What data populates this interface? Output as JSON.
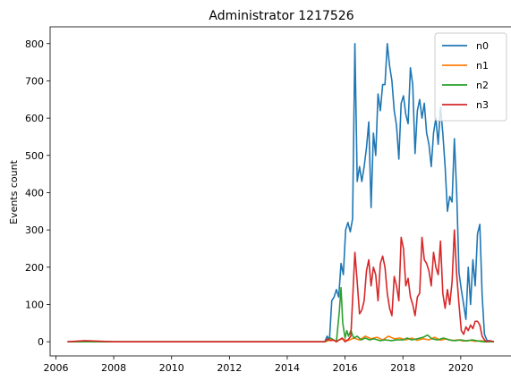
{
  "chart_data": {
    "type": "line",
    "title": "Administrator 1217526",
    "xlabel": "",
    "ylabel": "Events count",
    "xlim": [
      2005.8,
      2021.8
    ],
    "ylim": [
      -38,
      845
    ],
    "xticks": [
      2006,
      2008,
      2010,
      2012,
      2014,
      2016,
      2018,
      2020
    ],
    "yticks": [
      0,
      100,
      200,
      300,
      400,
      500,
      600,
      700,
      800
    ],
    "grid": false,
    "legend_position": "top-right",
    "series": [
      {
        "name": "n0",
        "color": "#1f77b4",
        "points": [
          [
            2006.4,
            0
          ],
          [
            2007.0,
            0
          ],
          [
            2008.0,
            0
          ],
          [
            2009.0,
            0
          ],
          [
            2010.0,
            0
          ],
          [
            2011.0,
            0
          ],
          [
            2012.0,
            0
          ],
          [
            2013.0,
            0
          ],
          [
            2014.0,
            0
          ],
          [
            2015.0,
            0
          ],
          [
            2015.3,
            0
          ],
          [
            2015.38,
            15
          ],
          [
            2015.46,
            5
          ],
          [
            2015.54,
            110
          ],
          [
            2015.62,
            120
          ],
          [
            2015.7,
            140
          ],
          [
            2015.78,
            120
          ],
          [
            2015.86,
            210
          ],
          [
            2015.94,
            180
          ],
          [
            2016.02,
            300
          ],
          [
            2016.1,
            320
          ],
          [
            2016.18,
            295
          ],
          [
            2016.26,
            330
          ],
          [
            2016.34,
            800
          ],
          [
            2016.42,
            430
          ],
          [
            2016.5,
            470
          ],
          [
            2016.58,
            430
          ],
          [
            2016.66,
            470
          ],
          [
            2016.74,
            520
          ],
          [
            2016.82,
            590
          ],
          [
            2016.9,
            360
          ],
          [
            2016.98,
            560
          ],
          [
            2017.06,
            500
          ],
          [
            2017.14,
            665
          ],
          [
            2017.22,
            620
          ],
          [
            2017.3,
            690
          ],
          [
            2017.38,
            690
          ],
          [
            2017.46,
            800
          ],
          [
            2017.54,
            740
          ],
          [
            2017.62,
            700
          ],
          [
            2017.7,
            620
          ],
          [
            2017.78,
            580
          ],
          [
            2017.86,
            490
          ],
          [
            2017.94,
            640
          ],
          [
            2018.02,
            660
          ],
          [
            2018.1,
            610
          ],
          [
            2018.18,
            585
          ],
          [
            2018.26,
            735
          ],
          [
            2018.34,
            690
          ],
          [
            2018.42,
            505
          ],
          [
            2018.5,
            620
          ],
          [
            2018.58,
            650
          ],
          [
            2018.66,
            600
          ],
          [
            2018.74,
            640
          ],
          [
            2018.82,
            560
          ],
          [
            2018.9,
            530
          ],
          [
            2018.98,
            470
          ],
          [
            2019.06,
            560
          ],
          [
            2019.14,
            600
          ],
          [
            2019.22,
            530
          ],
          [
            2019.3,
            630
          ],
          [
            2019.38,
            560
          ],
          [
            2019.46,
            470
          ],
          [
            2019.54,
            350
          ],
          [
            2019.62,
            390
          ],
          [
            2019.7,
            375
          ],
          [
            2019.78,
            545
          ],
          [
            2019.86,
            400
          ],
          [
            2019.94,
            185
          ],
          [
            2020.02,
            140
          ],
          [
            2020.1,
            100
          ],
          [
            2020.18,
            60
          ],
          [
            2020.26,
            200
          ],
          [
            2020.34,
            100
          ],
          [
            2020.42,
            220
          ],
          [
            2020.5,
            150
          ],
          [
            2020.58,
            290
          ],
          [
            2020.66,
            315
          ],
          [
            2020.74,
            125
          ],
          [
            2020.82,
            20
          ],
          [
            2020.9,
            5
          ],
          [
            2021.0,
            0
          ],
          [
            2021.15,
            0
          ]
        ]
      },
      {
        "name": "n1",
        "color": "#ff7f0e",
        "points": [
          [
            2006.4,
            0
          ],
          [
            2007.0,
            2
          ],
          [
            2008.0,
            0
          ],
          [
            2010.0,
            0
          ],
          [
            2012.0,
            0
          ],
          [
            2014.0,
            0
          ],
          [
            2015.3,
            0
          ],
          [
            2015.5,
            5
          ],
          [
            2015.7,
            2
          ],
          [
            2015.9,
            8
          ],
          [
            2016.1,
            3
          ],
          [
            2016.3,
            10
          ],
          [
            2016.5,
            5
          ],
          [
            2016.7,
            15
          ],
          [
            2016.9,
            8
          ],
          [
            2017.1,
            12
          ],
          [
            2017.3,
            5
          ],
          [
            2017.5,
            15
          ],
          [
            2017.7,
            8
          ],
          [
            2017.9,
            10
          ],
          [
            2018.1,
            5
          ],
          [
            2018.3,
            10
          ],
          [
            2018.5,
            4
          ],
          [
            2018.7,
            8
          ],
          [
            2018.9,
            5
          ],
          [
            2019.1,
            12
          ],
          [
            2019.3,
            4
          ],
          [
            2019.5,
            8
          ],
          [
            2019.7,
            3
          ],
          [
            2019.9,
            5
          ],
          [
            2020.1,
            2
          ],
          [
            2020.3,
            4
          ],
          [
            2020.5,
            1
          ],
          [
            2020.7,
            3
          ],
          [
            2020.9,
            0
          ],
          [
            2021.15,
            0
          ]
        ]
      },
      {
        "name": "n2",
        "color": "#2ca02c",
        "points": [
          [
            2006.4,
            0
          ],
          [
            2007.0,
            0
          ],
          [
            2008.0,
            0
          ],
          [
            2010.0,
            0
          ],
          [
            2012.0,
            0
          ],
          [
            2014.0,
            0
          ],
          [
            2015.3,
            0
          ],
          [
            2015.5,
            10
          ],
          [
            2015.7,
            0
          ],
          [
            2015.8,
            80
          ],
          [
            2015.86,
            145
          ],
          [
            2015.92,
            50
          ],
          [
            2016.0,
            10
          ],
          [
            2016.06,
            30
          ],
          [
            2016.12,
            15
          ],
          [
            2016.2,
            30
          ],
          [
            2016.3,
            10
          ],
          [
            2016.42,
            15
          ],
          [
            2016.55,
            5
          ],
          [
            2016.7,
            10
          ],
          [
            2016.85,
            5
          ],
          [
            2017.0,
            8
          ],
          [
            2017.2,
            3
          ],
          [
            2017.4,
            5
          ],
          [
            2017.6,
            3
          ],
          [
            2017.8,
            5
          ],
          [
            2018.0,
            5
          ],
          [
            2018.15,
            10
          ],
          [
            2018.3,
            5
          ],
          [
            2018.5,
            8
          ],
          [
            2018.7,
            12
          ],
          [
            2018.85,
            18
          ],
          [
            2019.0,
            8
          ],
          [
            2019.2,
            5
          ],
          [
            2019.4,
            10
          ],
          [
            2019.6,
            5
          ],
          [
            2019.8,
            3
          ],
          [
            2020.0,
            5
          ],
          [
            2020.2,
            2
          ],
          [
            2020.4,
            5
          ],
          [
            2020.6,
            2
          ],
          [
            2020.8,
            0
          ],
          [
            2021.15,
            0
          ]
        ]
      },
      {
        "name": "n3",
        "color": "#d62728",
        "points": [
          [
            2006.4,
            0
          ],
          [
            2007.0,
            3
          ],
          [
            2008.0,
            0
          ],
          [
            2009.0,
            0
          ],
          [
            2010.0,
            0
          ],
          [
            2011.0,
            0
          ],
          [
            2012.0,
            0
          ],
          [
            2013.0,
            0
          ],
          [
            2014.0,
            0
          ],
          [
            2015.0,
            0
          ],
          [
            2015.3,
            0
          ],
          [
            2015.4,
            8
          ],
          [
            2015.5,
            3
          ],
          [
            2015.6,
            5
          ],
          [
            2015.7,
            0
          ],
          [
            2015.8,
            5
          ],
          [
            2015.9,
            10
          ],
          [
            2016.0,
            0
          ],
          [
            2016.1,
            5
          ],
          [
            2016.2,
            15
          ],
          [
            2016.34,
            240
          ],
          [
            2016.42,
            160
          ],
          [
            2016.5,
            75
          ],
          [
            2016.58,
            85
          ],
          [
            2016.66,
            110
          ],
          [
            2016.74,
            190
          ],
          [
            2016.82,
            220
          ],
          [
            2016.9,
            150
          ],
          [
            2016.98,
            200
          ],
          [
            2017.06,
            180
          ],
          [
            2017.14,
            110
          ],
          [
            2017.22,
            210
          ],
          [
            2017.3,
            230
          ],
          [
            2017.38,
            200
          ],
          [
            2017.46,
            130
          ],
          [
            2017.54,
            90
          ],
          [
            2017.62,
            70
          ],
          [
            2017.7,
            175
          ],
          [
            2017.78,
            150
          ],
          [
            2017.86,
            110
          ],
          [
            2017.94,
            280
          ],
          [
            2018.02,
            250
          ],
          [
            2018.1,
            150
          ],
          [
            2018.18,
            170
          ],
          [
            2018.26,
            120
          ],
          [
            2018.34,
            100
          ],
          [
            2018.42,
            70
          ],
          [
            2018.5,
            120
          ],
          [
            2018.58,
            130
          ],
          [
            2018.66,
            280
          ],
          [
            2018.74,
            220
          ],
          [
            2018.82,
            210
          ],
          [
            2018.9,
            190
          ],
          [
            2018.98,
            150
          ],
          [
            2019.06,
            240
          ],
          [
            2019.14,
            200
          ],
          [
            2019.22,
            180
          ],
          [
            2019.3,
            270
          ],
          [
            2019.38,
            130
          ],
          [
            2019.46,
            90
          ],
          [
            2019.54,
            140
          ],
          [
            2019.62,
            100
          ],
          [
            2019.7,
            160
          ],
          [
            2019.78,
            300
          ],
          [
            2019.86,
            180
          ],
          [
            2019.94,
            100
          ],
          [
            2020.02,
            30
          ],
          [
            2020.1,
            20
          ],
          [
            2020.18,
            40
          ],
          [
            2020.26,
            30
          ],
          [
            2020.34,
            45
          ],
          [
            2020.42,
            35
          ],
          [
            2020.5,
            55
          ],
          [
            2020.58,
            55
          ],
          [
            2020.66,
            45
          ],
          [
            2020.74,
            15
          ],
          [
            2020.82,
            5
          ],
          [
            2020.9,
            0
          ],
          [
            2021.0,
            3
          ],
          [
            2021.15,
            0
          ]
        ]
      }
    ]
  }
}
